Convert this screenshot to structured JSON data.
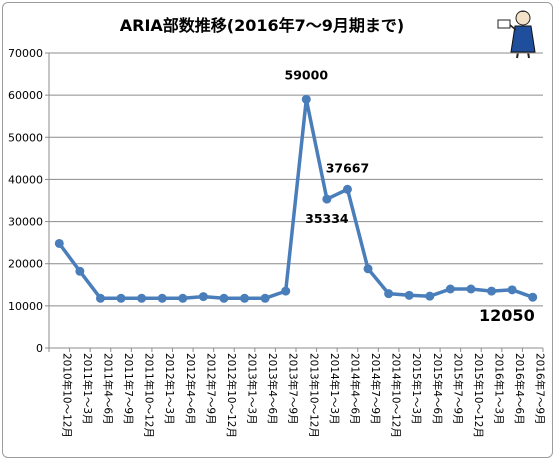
{
  "chart_data": {
    "type": "line",
    "title": "ARIA部数推移(2016年7〜9月期まで)",
    "xlabel": "",
    "ylabel": "",
    "ylim": [
      0,
      70000
    ],
    "yticks": [
      0,
      10000,
      20000,
      30000,
      40000,
      50000,
      60000,
      70000
    ],
    "ytick_labels": [
      "0",
      "10000",
      "20000",
      "30000",
      "40000",
      "50000",
      "60000",
      "70000"
    ],
    "grid": "horizontal",
    "legend": "none",
    "categories": [
      "2010年10〜12月",
      "2011年1〜3月",
      "2011年4〜6月",
      "2011年7〜9月",
      "2011年10〜12月",
      "2012年1〜3月",
      "2012年4〜6月",
      "2012年7〜9月",
      "2012年10〜12月",
      "2013年1〜3月",
      "2013年4〜6月",
      "2013年7〜9月",
      "2013年10〜12月",
      "2014年1〜3月",
      "2014年4〜6月",
      "2014年7〜9月",
      "2014年10〜12月",
      "2015年1〜3月",
      "2015年4〜6月",
      "2015年7〜9月",
      "2015年10〜12月",
      "2016年1〜3月",
      "2016年4〜6月",
      "2016年7〜9月"
    ],
    "series": [
      {
        "values": [
          24800,
          18200,
          11800,
          11800,
          11800,
          11800,
          11800,
          12200,
          11800,
          11800,
          11800,
          13500,
          59000,
          35334,
          37667,
          18800,
          12900,
          12500,
          12300,
          14000,
          14000,
          13500,
          13800,
          12050
        ],
        "color": "#4a7ebb"
      }
    ],
    "data_labels": [
      {
        "index": 12,
        "text": "59000"
      },
      {
        "index": 13,
        "text": "35334"
      },
      {
        "index": 14,
        "text": "37667"
      },
      {
        "index": 23,
        "text": "12050"
      }
    ]
  }
}
